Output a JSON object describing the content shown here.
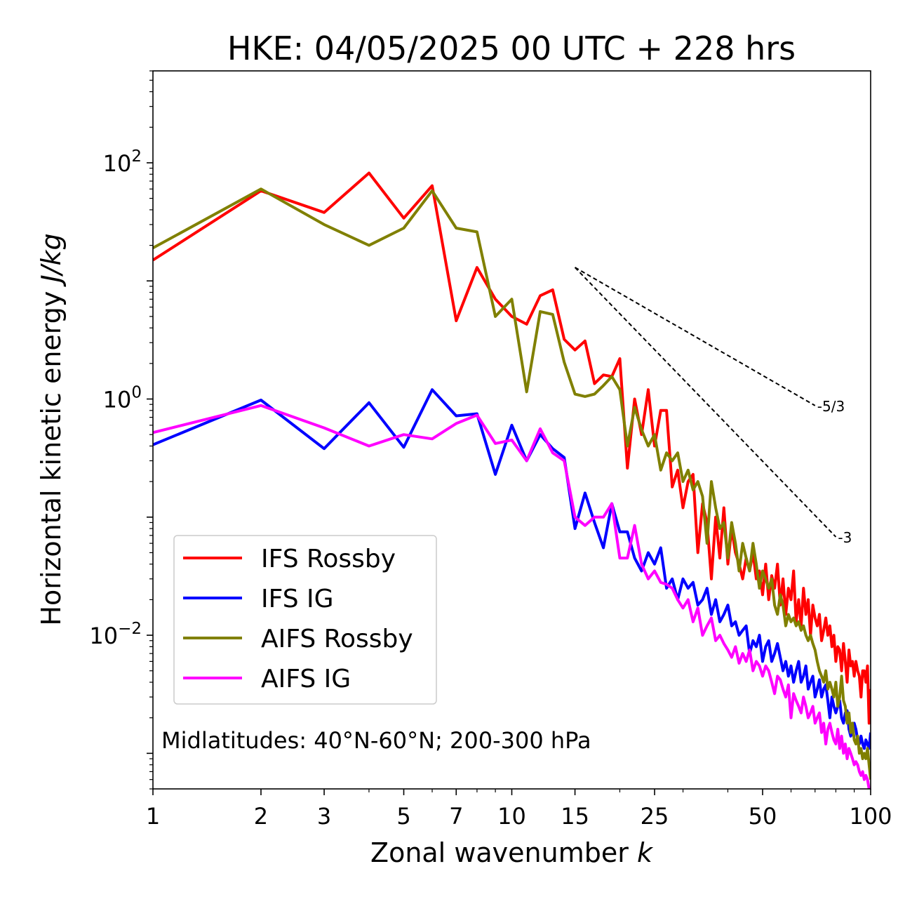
{
  "chart_data": {
    "type": "line",
    "title": "HKE: 04/05/2025 00 UTC + 228 hrs",
    "xlabel_text": "Zonal wavenumber ",
    "xlabel_var": "k",
    "ylabel_text": "Horizontal kinetic energy ",
    "ylabel_units": "J/kg",
    "xscale": "log",
    "yscale": "log",
    "xlim": [
      1,
      100
    ],
    "ylim": [
      0.0005,
      600
    ],
    "x_ticks": [
      1,
      2,
      3,
      5,
      7,
      10,
      15,
      25,
      50,
      100
    ],
    "x_tick_labels": [
      "1",
      "2",
      "3",
      "5",
      "7",
      "10",
      "15",
      "25",
      "50",
      "100"
    ],
    "y_ticks": [
      {
        "value": 100,
        "base": "10",
        "exp": "2"
      },
      {
        "value": 1,
        "base": "10",
        "exp": "0"
      },
      {
        "value": 0.01,
        "base": "10",
        "exp": "−2"
      }
    ],
    "annotation": "Midlatitudes: 40°N-60°N; 200-300 hPa",
    "legend": {
      "position": "lower-left"
    },
    "slopes": [
      {
        "label": "-5/3",
        "x_start": 15,
        "x_end": 70,
        "y_start": 13,
        "y_end": 0.88
      },
      {
        "label": "-3",
        "x_start": 15,
        "x_end": 80,
        "y_start": 13,
        "y_end": 0.068
      }
    ],
    "series": [
      {
        "name": "IFS Rossby",
        "color": "#ff0000",
        "x": [
          1,
          2,
          3,
          4,
          5,
          6,
          7,
          8,
          9,
          10,
          11,
          12,
          13,
          14,
          15,
          16,
          17,
          18,
          19,
          20,
          21,
          22,
          23,
          24,
          25,
          26,
          27,
          28,
          29,
          30,
          31,
          32,
          33,
          34,
          35,
          36,
          37,
          38,
          39,
          40,
          41,
          42,
          43,
          44,
          45,
          46,
          47,
          48,
          49,
          50,
          51,
          52,
          53,
          54,
          55,
          56,
          57,
          58,
          59,
          60,
          61,
          62,
          63,
          64,
          65,
          66,
          67,
          68,
          69,
          70,
          71,
          72,
          73,
          74,
          75,
          76,
          77,
          78,
          79,
          80,
          81,
          82,
          83,
          84,
          85,
          86,
          87,
          88,
          89,
          90,
          91,
          92,
          93,
          94,
          95,
          96,
          97,
          98,
          99,
          100
        ],
        "y": [
          15,
          58,
          38,
          82,
          34,
          64,
          4.6,
          13,
          7,
          5,
          4.3,
          7.5,
          8.4,
          3.2,
          2.6,
          3.1,
          1.35,
          1.6,
          1.55,
          2.2,
          0.26,
          1.0,
          0.5,
          1.2,
          0.4,
          0.8,
          0.8,
          0.18,
          0.25,
          0.12,
          0.2,
          0.23,
          0.05,
          0.13,
          0.09,
          0.03,
          0.1,
          0.045,
          0.12,
          0.04,
          0.08,
          0.05,
          0.04,
          0.03,
          0.045,
          0.035,
          0.05,
          0.03,
          0.035,
          0.022,
          0.04,
          0.02,
          0.032,
          0.025,
          0.04,
          0.018,
          0.03,
          0.015,
          0.025,
          0.02,
          0.035,
          0.013,
          0.02,
          0.012,
          0.025,
          0.015,
          0.02,
          0.01,
          0.018,
          0.014,
          0.012,
          0.015,
          0.009,
          0.011,
          0.014,
          0.01,
          0.012,
          0.008,
          0.01,
          0.006,
          0.008,
          0.0075,
          0.005,
          0.0085,
          0.006,
          0.004,
          0.0075,
          0.0055,
          0.006,
          0.0045,
          0.006,
          0.005,
          0.0045,
          0.003,
          0.005,
          0.005,
          0.004,
          0.0055,
          0.0018,
          0.0035
        ]
      },
      {
        "name": "IFS IG",
        "color": "#0000ff",
        "x": [
          1,
          2,
          3,
          4,
          5,
          6,
          7,
          8,
          9,
          10,
          11,
          12,
          13,
          14,
          15,
          16,
          17,
          18,
          19,
          20,
          21,
          22,
          23,
          24,
          25,
          26,
          27,
          28,
          29,
          30,
          31,
          32,
          33,
          34,
          35,
          36,
          37,
          38,
          39,
          40,
          41,
          42,
          43,
          44,
          45,
          46,
          47,
          48,
          49,
          50,
          51,
          52,
          53,
          54,
          55,
          56,
          57,
          58,
          59,
          60,
          61,
          62,
          63,
          64,
          65,
          66,
          67,
          68,
          69,
          70,
          71,
          72,
          73,
          74,
          75,
          76,
          77,
          78,
          79,
          80,
          81,
          82,
          83,
          84,
          85,
          86,
          87,
          88,
          89,
          90,
          91,
          92,
          93,
          94,
          95,
          96,
          97,
          98,
          99,
          100
        ],
        "y": [
          0.41,
          0.98,
          0.38,
          0.93,
          0.39,
          1.2,
          0.72,
          0.75,
          0.23,
          0.6,
          0.3,
          0.5,
          0.38,
          0.32,
          0.08,
          0.16,
          0.09,
          0.055,
          0.13,
          0.075,
          0.075,
          0.045,
          0.035,
          0.05,
          0.04,
          0.055,
          0.025,
          0.03,
          0.02,
          0.03,
          0.025,
          0.028,
          0.018,
          0.02,
          0.025,
          0.015,
          0.02,
          0.013,
          0.015,
          0.018,
          0.012,
          0.013,
          0.01,
          0.011,
          0.012,
          0.007,
          0.009,
          0.008,
          0.01,
          0.006,
          0.008,
          0.009,
          0.006,
          0.007,
          0.0085,
          0.0065,
          0.005,
          0.006,
          0.0045,
          0.0055,
          0.004,
          0.005,
          0.006,
          0.004,
          0.0045,
          0.0055,
          0.0035,
          0.004,
          0.0045,
          0.003,
          0.0035,
          0.0042,
          0.003,
          0.0035,
          0.0038,
          0.0028,
          0.002,
          0.003,
          0.0025,
          0.0022,
          0.0025,
          0.0028,
          0.002,
          0.0018,
          0.0022,
          0.0023,
          0.0016,
          0.0014,
          0.0015,
          0.0018,
          0.0016,
          0.0013,
          0.0012,
          0.0014,
          0.0012,
          0.0011,
          0.0013,
          0.0012,
          0.0011,
          0.0015
        ]
      },
      {
        "name": "AIFS Rossby",
        "color": "#808000",
        "x": [
          1,
          2,
          3,
          4,
          5,
          6,
          7,
          8,
          9,
          10,
          11,
          12,
          13,
          14,
          15,
          16,
          17,
          18,
          19,
          20,
          21,
          22,
          23,
          24,
          25,
          26,
          27,
          28,
          29,
          30,
          31,
          32,
          33,
          34,
          35,
          36,
          37,
          38,
          39,
          40,
          41,
          42,
          43,
          44,
          45,
          46,
          47,
          48,
          49,
          50,
          51,
          52,
          53,
          54,
          55,
          56,
          57,
          58,
          59,
          60,
          61,
          62,
          63,
          64,
          65,
          66,
          67,
          68,
          69,
          70,
          71,
          72,
          73,
          74,
          75,
          76,
          77,
          78,
          79,
          80,
          81,
          82,
          83,
          84,
          85,
          86,
          87,
          88,
          89,
          90,
          91,
          92,
          93,
          94,
          95,
          96,
          97,
          98,
          99,
          100
        ],
        "y": [
          19,
          60,
          30,
          20,
          28,
          58,
          28,
          26,
          5,
          7,
          1.15,
          5.5,
          5.2,
          2.05,
          1.1,
          1.05,
          1.1,
          1.3,
          1.55,
          1.2,
          0.4,
          0.85,
          0.55,
          0.4,
          0.5,
          0.25,
          0.35,
          0.3,
          0.35,
          0.2,
          0.25,
          0.17,
          0.2,
          0.15,
          0.06,
          0.2,
          0.12,
          0.08,
          0.09,
          0.045,
          0.09,
          0.06,
          0.035,
          0.06,
          0.045,
          0.035,
          0.06,
          0.04,
          0.025,
          0.035,
          0.03,
          0.025,
          0.03,
          0.018,
          0.015,
          0.022,
          0.018,
          0.012,
          0.015,
          0.013,
          0.014,
          0.012,
          0.013,
          0.011,
          0.012,
          0.01,
          0.009,
          0.01,
          0.0085,
          0.0075,
          0.006,
          0.005,
          0.0045,
          0.004,
          0.005,
          0.0035,
          0.004,
          0.0035,
          0.003,
          0.004,
          0.0025,
          0.003,
          0.0045,
          0.0028,
          0.0025,
          0.0018,
          0.0022,
          0.0015,
          0.0018,
          0.0013,
          0.0012,
          0.0014,
          0.001,
          0.0011,
          0.0009,
          0.001,
          0.0009,
          0.0011,
          0.0008,
          0.0006
        ]
      },
      {
        "name": "AIFS IG",
        "color": "#ff00ff",
        "x": [
          1,
          2,
          3,
          4,
          5,
          6,
          7,
          8,
          9,
          10,
          11,
          12,
          13,
          14,
          15,
          16,
          17,
          18,
          19,
          20,
          21,
          22,
          23,
          24,
          25,
          26,
          27,
          28,
          29,
          30,
          31,
          32,
          33,
          34,
          35,
          36,
          37,
          38,
          39,
          40,
          41,
          42,
          43,
          44,
          45,
          46,
          47,
          48,
          49,
          50,
          51,
          52,
          53,
          54,
          55,
          56,
          57,
          58,
          59,
          60,
          61,
          62,
          63,
          64,
          65,
          66,
          67,
          68,
          69,
          70,
          71,
          72,
          73,
          74,
          75,
          76,
          77,
          78,
          79,
          80,
          81,
          82,
          83,
          84,
          85,
          86,
          87,
          88,
          89,
          90,
          91,
          92,
          93,
          94,
          95,
          96,
          97,
          98,
          99,
          100
        ],
        "y": [
          0.52,
          0.88,
          0.57,
          0.4,
          0.5,
          0.46,
          0.62,
          0.73,
          0.42,
          0.45,
          0.3,
          0.56,
          0.35,
          0.3,
          0.1,
          0.085,
          0.1,
          0.1,
          0.13,
          0.045,
          0.045,
          0.085,
          0.04,
          0.03,
          0.035,
          0.028,
          0.027,
          0.025,
          0.02,
          0.017,
          0.02,
          0.013,
          0.017,
          0.01,
          0.012,
          0.014,
          0.009,
          0.01,
          0.0085,
          0.0075,
          0.0065,
          0.008,
          0.0058,
          0.007,
          0.006,
          0.0075,
          0.005,
          0.006,
          0.0055,
          0.0045,
          0.0055,
          0.005,
          0.004,
          0.0032,
          0.0045,
          0.0042,
          0.0035,
          0.003,
          0.0038,
          0.002,
          0.0032,
          0.0028,
          0.0025,
          0.0022,
          0.003,
          0.0025,
          0.002,
          0.0022,
          0.0025,
          0.0018,
          0.002,
          0.0022,
          0.0015,
          0.0018,
          0.0012,
          0.0016,
          0.0018,
          0.0015,
          0.0013,
          0.0012,
          0.0016,
          0.0011,
          0.0014,
          0.001,
          0.0012,
          0.0009,
          0.0011,
          0.001,
          0.0009,
          0.0008,
          0.00085,
          0.0008,
          0.0007,
          0.00065,
          0.0007,
          0.0006,
          0.00065,
          0.0006,
          0.0005,
          0.0005
        ]
      }
    ]
  }
}
